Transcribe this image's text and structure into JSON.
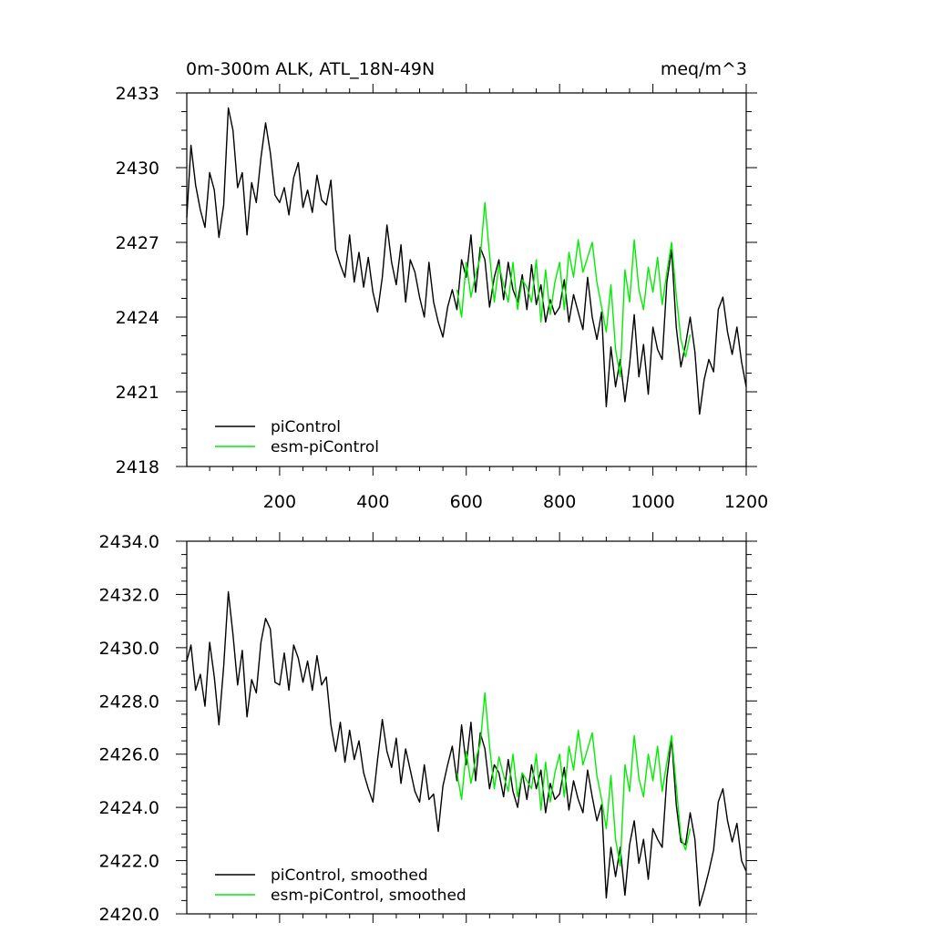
{
  "chart_data": [
    {
      "type": "line",
      "title_left": "0m-300m ALK, ATL_18N-49N",
      "title_right": "meq/m^3",
      "xlim": [
        1,
        1200
      ],
      "ylim": [
        2418,
        2433
      ],
      "x_ticks": [
        200,
        400,
        600,
        800,
        1000,
        1200
      ],
      "y_ticks": [
        2418,
        2421,
        2424,
        2427,
        2430,
        2433
      ],
      "y_tick_labels": [
        "2418",
        "2421",
        "2424",
        "2427",
        "2430",
        "2433"
      ],
      "legend_position": "bottom-left",
      "series": [
        {
          "name": "piControl",
          "color": "#000000",
          "x": [
            1,
            10,
            20,
            30,
            40,
            50,
            60,
            70,
            80,
            90,
            100,
            110,
            120,
            130,
            140,
            150,
            160,
            170,
            180,
            190,
            200,
            210,
            220,
            230,
            240,
            250,
            260,
            270,
            280,
            290,
            300,
            310,
            320,
            330,
            340,
            350,
            360,
            370,
            380,
            390,
            400,
            410,
            420,
            430,
            440,
            450,
            460,
            470,
            480,
            490,
            500,
            510,
            520,
            530,
            540,
            550,
            560,
            570,
            580,
            590,
            600,
            610,
            620,
            630,
            640,
            650,
            660,
            670,
            680,
            690,
            700,
            710,
            720,
            730,
            740,
            750,
            760,
            770,
            780,
            790,
            800,
            810,
            820,
            830,
            840,
            850,
            860,
            870,
            880,
            890,
            900,
            910,
            920,
            930,
            940,
            950,
            960,
            970,
            980,
            990,
            1000,
            1010,
            1020,
            1030,
            1040,
            1050,
            1060,
            1070,
            1080,
            1090,
            1100,
            1110,
            1120,
            1130,
            1140,
            1150,
            1160,
            1170,
            1180,
            1190,
            1200
          ],
          "y": [
            2428.0,
            2430.9,
            2429.3,
            2428.3,
            2427.6,
            2429.8,
            2429.1,
            2427.2,
            2428.5,
            2432.4,
            2431.5,
            2429.2,
            2429.8,
            2427.3,
            2429.4,
            2428.6,
            2430.4,
            2431.8,
            2430.6,
            2428.9,
            2428.6,
            2429.2,
            2428.1,
            2429.6,
            2430.2,
            2428.4,
            2429.1,
            2428.2,
            2429.7,
            2428.7,
            2428.5,
            2429.5,
            2426.7,
            2426.1,
            2425.6,
            2427.3,
            2425.4,
            2426.6,
            2425.2,
            2426.4,
            2425.0,
            2424.2,
            2425.6,
            2427.7,
            2426.2,
            2425.3,
            2426.9,
            2424.6,
            2426.3,
            2425.8,
            2424.8,
            2424.0,
            2426.2,
            2424.6,
            2423.8,
            2423.2,
            2424.4,
            2425.1,
            2424.3,
            2426.3,
            2425.6,
            2427.3,
            2425.0,
            2426.8,
            2426.3,
            2424.4,
            2425.6,
            2426.3,
            2424.7,
            2426.2,
            2425.1,
            2424.6,
            2425.7,
            2424.3,
            2426.1,
            2424.5,
            2425.3,
            2423.8,
            2424.7,
            2424.1,
            2424.4,
            2425.5,
            2423.8,
            2424.9,
            2424.2,
            2423.5,
            2425.6,
            2424.0,
            2423.1,
            2424.2,
            2420.4,
            2422.8,
            2421.2,
            2422.3,
            2420.6,
            2422.1,
            2424.1,
            2421.6,
            2422.9,
            2420.9,
            2423.6,
            2422.7,
            2422.3,
            2425.4,
            2426.7,
            2423.6,
            2422.0,
            2422.9,
            2424.0,
            2422.6,
            2420.1,
            2421.5,
            2422.3,
            2421.8,
            2424.3,
            2424.8,
            2423.4,
            2422.5,
            2423.6,
            2422.2,
            2421.2
          ]
        },
        {
          "name": "esm-piControl",
          "color": "#00ee00",
          "x": [
            580,
            590,
            600,
            610,
            620,
            630,
            640,
            650,
            660,
            670,
            680,
            690,
            700,
            710,
            720,
            730,
            740,
            750,
            760,
            770,
            780,
            790,
            800,
            810,
            820,
            830,
            840,
            850,
            860,
            870,
            880,
            890,
            900,
            910,
            920,
            930,
            940,
            950,
            960,
            970,
            980,
            990,
            1000,
            1010,
            1020,
            1030,
            1040,
            1050,
            1060,
            1070,
            1080
          ],
          "y": [
            2425.1,
            2424.0,
            2426.2,
            2424.8,
            2425.7,
            2426.4,
            2428.6,
            2426.5,
            2424.6,
            2426.1,
            2425.3,
            2424.6,
            2426.2,
            2424.3,
            2425.5,
            2425.2,
            2424.6,
            2426.3,
            2423.8,
            2425.9,
            2424.1,
            2425.4,
            2426.2,
            2424.3,
            2426.6,
            2425.6,
            2427.1,
            2425.8,
            2426.4,
            2427.0,
            2425.4,
            2424.4,
            2423.4,
            2425.3,
            2422.7,
            2421.6,
            2425.9,
            2424.6,
            2427.1,
            2425.1,
            2424.3,
            2426.0,
            2425.0,
            2426.4,
            2424.5,
            2425.8,
            2427.0,
            2424.9,
            2423.1,
            2422.4,
            2423.3
          ]
        }
      ]
    },
    {
      "type": "line",
      "xlim": [
        1,
        1200
      ],
      "ylim": [
        2420.0,
        2434.0
      ],
      "x_ticks": [
        200,
        400,
        600,
        800,
        1000,
        1200
      ],
      "y_ticks": [
        2420,
        2422,
        2424,
        2426,
        2428,
        2430,
        2432,
        2434
      ],
      "y_tick_labels": [
        "2420.0",
        "2422.0",
        "2424.0",
        "2426.0",
        "2428.0",
        "2430.0",
        "2432.0",
        "2434.0"
      ],
      "legend_position": "bottom-left",
      "series": [
        {
          "name": "piControl, smoothed",
          "color": "#000000",
          "x": [
            1,
            10,
            20,
            30,
            40,
            50,
            60,
            70,
            80,
            90,
            100,
            110,
            120,
            130,
            140,
            150,
            160,
            170,
            180,
            190,
            200,
            210,
            220,
            230,
            240,
            250,
            260,
            270,
            280,
            290,
            300,
            310,
            320,
            330,
            340,
            350,
            360,
            370,
            380,
            390,
            400,
            410,
            420,
            430,
            440,
            450,
            460,
            470,
            480,
            490,
            500,
            510,
            520,
            530,
            540,
            550,
            560,
            570,
            580,
            590,
            600,
            610,
            620,
            630,
            640,
            650,
            660,
            670,
            680,
            690,
            700,
            710,
            720,
            730,
            740,
            750,
            760,
            770,
            780,
            790,
            800,
            810,
            820,
            830,
            840,
            850,
            860,
            870,
            880,
            890,
            900,
            910,
            920,
            930,
            940,
            950,
            960,
            970,
            980,
            990,
            1000,
            1010,
            1020,
            1030,
            1040,
            1050,
            1060,
            1070,
            1080,
            1090,
            1100,
            1110,
            1120,
            1130,
            1140,
            1150,
            1160,
            1170,
            1180,
            1190,
            1200
          ],
          "y": [
            2429.5,
            2430.1,
            2428.4,
            2429.0,
            2427.8,
            2430.2,
            2428.9,
            2427.1,
            2429.3,
            2432.1,
            2430.5,
            2428.6,
            2429.9,
            2427.4,
            2428.8,
            2428.3,
            2430.2,
            2431.1,
            2430.7,
            2428.7,
            2428.6,
            2429.8,
            2428.4,
            2430.1,
            2429.6,
            2428.7,
            2429.5,
            2428.4,
            2429.7,
            2428.6,
            2428.9,
            2427.1,
            2426.1,
            2427.2,
            2425.7,
            2426.9,
            2425.8,
            2426.5,
            2425.3,
            2424.7,
            2424.2,
            2425.8,
            2427.3,
            2426.1,
            2425.5,
            2426.6,
            2424.9,
            2426.2,
            2425.4,
            2424.6,
            2424.2,
            2425.6,
            2424.3,
            2424.5,
            2423.1,
            2424.8,
            2425.6,
            2426.3,
            2425.0,
            2427.1,
            2425.6,
            2427.2,
            2425.0,
            2426.8,
            2426.2,
            2424.7,
            2425.6,
            2425.3,
            2424.4,
            2425.8,
            2424.6,
            2424.0,
            2425.3,
            2424.3,
            2425.6,
            2424.7,
            2425.4,
            2423.8,
            2424.9,
            2424.3,
            2424.5,
            2425.5,
            2423.9,
            2425.0,
            2424.3,
            2423.8,
            2425.4,
            2424.4,
            2423.5,
            2424.1,
            2420.6,
            2422.5,
            2421.4,
            2422.5,
            2420.7,
            2422.6,
            2423.5,
            2421.9,
            2422.8,
            2421.3,
            2423.2,
            2422.8,
            2422.5,
            2425.1,
            2426.6,
            2424.1,
            2422.7,
            2422.6,
            2423.8,
            2422.8,
            2420.3,
            2420.9,
            2421.6,
            2422.4,
            2424.2,
            2424.7,
            2423.5,
            2422.7,
            2423.4,
            2422.0,
            2421.6
          ]
        },
        {
          "name": "esm-piControl, smoothed",
          "color": "#00ee00",
          "x": [
            580,
            590,
            600,
            610,
            620,
            630,
            640,
            650,
            660,
            670,
            680,
            690,
            700,
            710,
            720,
            730,
            740,
            750,
            760,
            770,
            780,
            790,
            800,
            810,
            820,
            830,
            840,
            850,
            860,
            870,
            880,
            890,
            900,
            910,
            920,
            930,
            940,
            950,
            960,
            970,
            980,
            990,
            1000,
            1010,
            1020,
            1030,
            1040,
            1050,
            1060,
            1070,
            1080
          ],
          "y": [
            2425.3,
            2424.3,
            2426.1,
            2424.9,
            2425.8,
            2426.4,
            2428.3,
            2426.3,
            2424.7,
            2425.9,
            2425.2,
            2424.6,
            2426.0,
            2424.4,
            2425.3,
            2425.0,
            2424.7,
            2426.0,
            2423.9,
            2425.7,
            2424.2,
            2425.3,
            2426.0,
            2424.4,
            2426.3,
            2425.4,
            2426.9,
            2425.6,
            2426.2,
            2426.8,
            2425.2,
            2424.3,
            2423.2,
            2425.2,
            2422.8,
            2421.8,
            2425.6,
            2424.6,
            2426.7,
            2425.1,
            2424.4,
            2426.0,
            2425.0,
            2426.3,
            2424.6,
            2425.7,
            2426.7,
            2424.8,
            2422.9,
            2422.4,
            2423.2
          ]
        }
      ]
    }
  ]
}
